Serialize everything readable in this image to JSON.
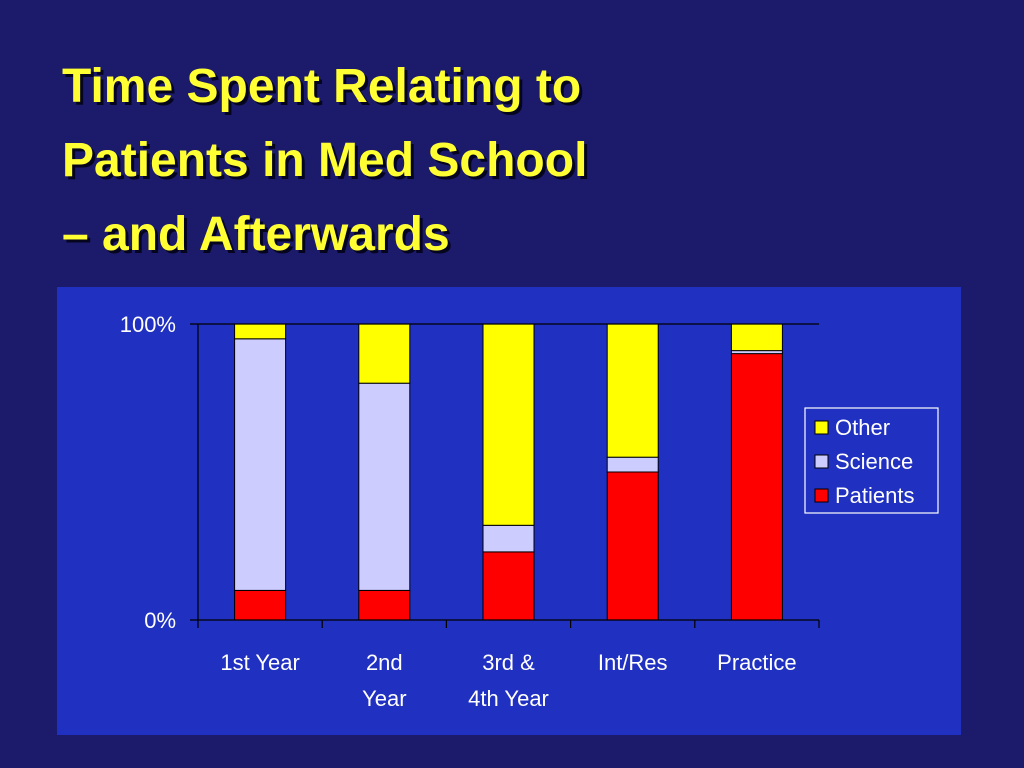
{
  "slide": {
    "title_lines": [
      "Time Spent Relating to",
      "Patients in Med School",
      "– and Afterwards"
    ]
  },
  "colors": {
    "background": "#1c1a6a",
    "panel": "#2030c0",
    "title": "#ffff33",
    "other": "#ffff00",
    "science": "#ccccff",
    "patients": "#ff0000"
  },
  "chart_data": {
    "type": "bar",
    "stacked": true,
    "categories": [
      [
        "1st Year"
      ],
      [
        "2nd",
        "Year"
      ],
      [
        "3rd &",
        "4th Year"
      ],
      [
        "Int/Res"
      ],
      [
        "Practice"
      ]
    ],
    "series": [
      {
        "name": "Patients",
        "color": "#ff0000",
        "values": [
          10,
          10,
          23,
          50,
          90
        ]
      },
      {
        "name": "Science",
        "color": "#ccccff",
        "values": [
          85,
          70,
          9,
          5,
          1
        ]
      },
      {
        "name": "Other",
        "color": "#ffff00",
        "values": [
          5,
          20,
          68,
          45,
          9
        ]
      }
    ],
    "y_ticks": [
      "100%",
      "0%"
    ],
    "ylim": [
      0,
      100
    ],
    "grid": false,
    "legend": {
      "position": "right",
      "order": [
        "Other",
        "Science",
        "Patients"
      ]
    }
  }
}
